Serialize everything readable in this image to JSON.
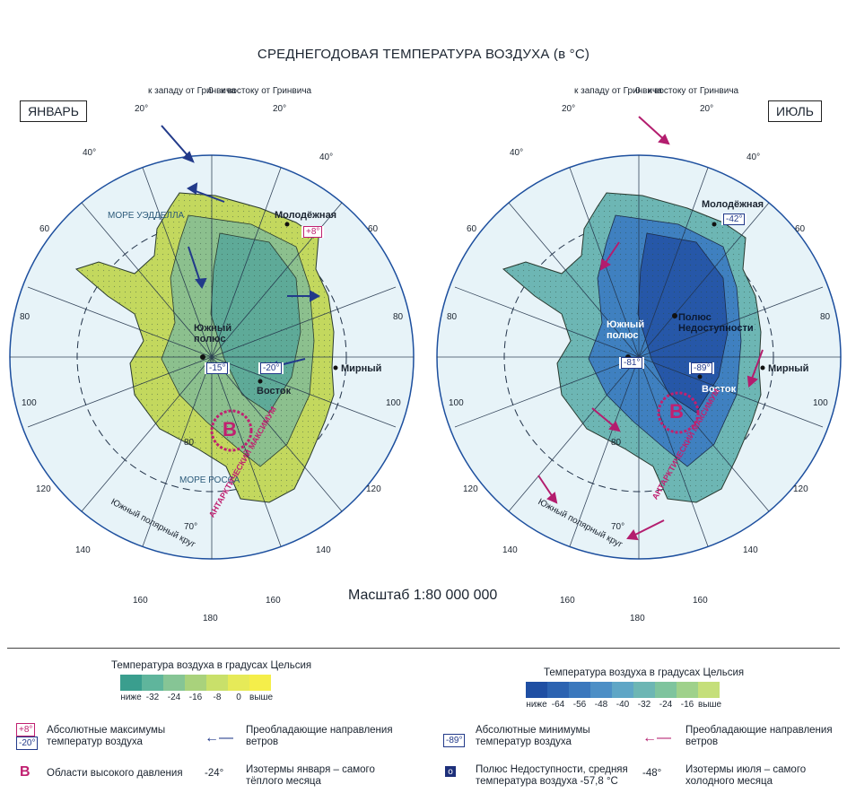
{
  "title": "СРЕДНЕГОДОВАЯ ТЕМПЕРАТУРА ВОЗДУХА (в °C)",
  "scale_label": "Масштаб 1:80 000 000",
  "maps": {
    "january": {
      "tag": "ЯНВАРЬ",
      "pole_label": "Южный полюс",
      "pole_value": "-15°",
      "vostok_value": "-20°",
      "molodezhnaya_value": "+8°",
      "high_label": "В",
      "high_arc": "АНТАРКТИЧЕСКИЙ МАКСИМУМ",
      "sea1": "МОРЕ УЭДДЕЛЛА",
      "sea2": "МОРЕ РОССА"
    },
    "july": {
      "tag": "ИЮЛЬ",
      "pole_label": "Южный полюс",
      "pole_value": "-81°",
      "vostok_value": "-89°",
      "molodezhnaya_value": "-42°",
      "inaccessibility": "Полюс Недоступности",
      "high_label": "В",
      "high_arc": "АНТАРКТИЧЕСКИЙ МАКСИМУМ"
    }
  },
  "stations": {
    "molodezhnaya": "Молодёжная",
    "mirny": "Мирный",
    "vostok": "Восток"
  },
  "graticule": {
    "top": [
      "к западу от Гринвича",
      "0",
      "к востоку от Гринвича"
    ],
    "lon_labels": [
      "20°",
      "20°",
      "40°",
      "40°",
      "60",
      "60",
      "80",
      "80",
      "100",
      "100",
      "120",
      "120",
      "140",
      "140",
      "160",
      "160",
      "180"
    ],
    "lat_labels": [
      "60",
      "70°",
      "80"
    ],
    "circle": "Южный полярный круг"
  },
  "legend_left": {
    "title": "Температура воздуха в градусах Цельсия",
    "ticks": [
      "ниже",
      "-32",
      "-24",
      "-16",
      "-8",
      "0",
      "выше"
    ],
    "colors": [
      "#3a9e8e",
      "#5fb59c",
      "#86c595",
      "#a9d27c",
      "#c9e06a",
      "#e6ea58",
      "#f5ee4a"
    ],
    "items": [
      {
        "badge1": "+8°",
        "badge2": "-20°",
        "text": "Абсолютные максимумы температур воздуха"
      },
      {
        "symbol": "В",
        "text": "Области высокого давления"
      }
    ],
    "wind_text": "Преобладающие направления ветров",
    "iso_value": "-24°",
    "iso_text": "Изотермы января – самого тёплого месяца"
  },
  "legend_right": {
    "title": "Температура воздуха в градусах Цельсия",
    "ticks": [
      "ниже",
      "-64",
      "-56",
      "-48",
      "-40",
      "-32",
      "-24",
      "-16",
      "выше"
    ],
    "colors": [
      "#1f4fa3",
      "#2c63b1",
      "#3b78bd",
      "#4d8fc6",
      "#5fa6c6",
      "#6db6b4",
      "#7fc49e",
      "#9fd18b",
      "#c5df7a"
    ],
    "items": [
      {
        "badge": "-89°",
        "text": "Абсолютные минимумы температур воздуха"
      },
      {
        "symbol": "o",
        "text": "Полюс Недоступности, средняя температура воздуха -57,8 °C"
      }
    ],
    "wind_text": "Преобладающие направления ветров",
    "iso_value": "-48°",
    "iso_text": "Изотермы июля – самого холодного месяца"
  },
  "colors": {
    "ocean": "#e7f3f8",
    "ocean_line": "#1d4f9e",
    "wind_jan": "#223a8a",
    "wind_jul": "#b31d6e",
    "high": "#c02070"
  }
}
